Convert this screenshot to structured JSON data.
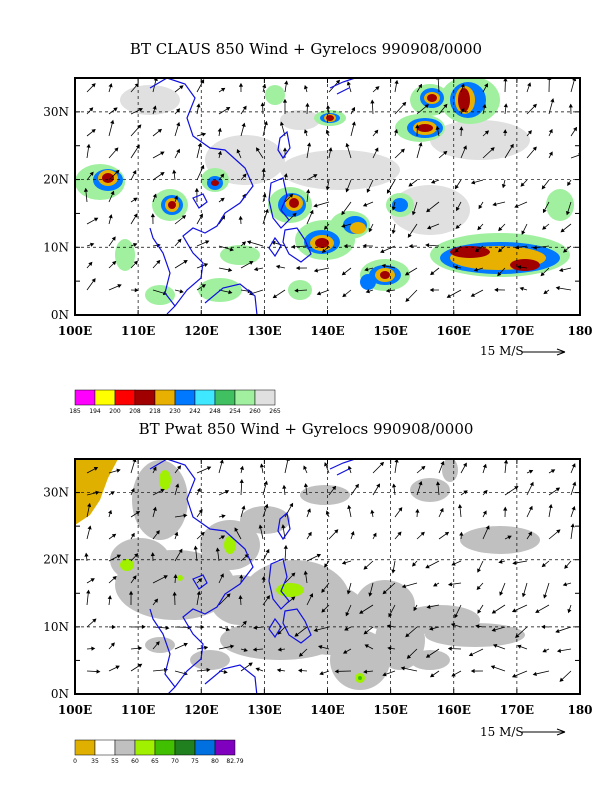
{
  "panels": [
    {
      "title": "BT CLAUS 850 Wind + Gyrelocs 990908/0000",
      "lat_labels": [
        "0N",
        "10N",
        "20N",
        "30N"
      ],
      "lon_labels": [
        "100E",
        "110E",
        "120E",
        "130E",
        "140E",
        "150E",
        "160E",
        "170E",
        "180"
      ],
      "wind_ref": "15 M/S",
      "colorbar": {
        "labels": [
          "185",
          "194",
          "200",
          "208",
          "218",
          "230",
          "242",
          "248",
          "254",
          "260",
          "265"
        ],
        "colors": [
          "#ff00ff",
          "#ffff00",
          "#ff0000",
          "#a00000",
          "#e8b000",
          "#0078ff",
          "#40e8ff",
          "#40c060",
          "#a0f0a0",
          "#e0e0e0"
        ]
      }
    },
    {
      "title": "BT Pwat 850 Wind + Gyrelocs 990908/0000",
      "lat_labels": [
        "0N",
        "10N",
        "20N",
        "30N"
      ],
      "lon_labels": [
        "100E",
        "110E",
        "120E",
        "130E",
        "140E",
        "150E",
        "160E",
        "170E",
        "180"
      ],
      "wind_ref": "15 M/S",
      "colorbar": {
        "labels": [
          "0",
          "35",
          "55",
          "60",
          "65",
          "70",
          "75",
          "80",
          "82.79"
        ],
        "colors": [
          "#e0b000",
          "#ffffff",
          "#c0c0c0",
          "#a0f000",
          "#40c000",
          "#208020",
          "#0070e0",
          "#8000c0"
        ]
      }
    }
  ]
}
